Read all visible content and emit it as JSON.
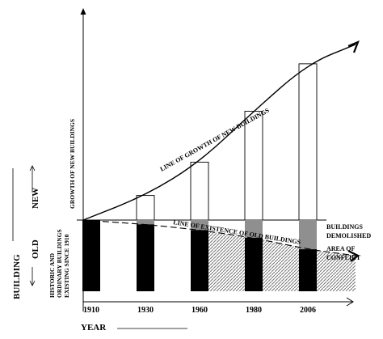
{
  "chart_data": {
    "type": "bar",
    "title": "",
    "categories": [
      "1910",
      "1930",
      "1960",
      "1980",
      "2006"
    ],
    "xlabel": "YEAR",
    "side_labels": {
      "building": "BUILDING",
      "new": "NEW",
      "old": "OLD",
      "new_axis": "GROWTH OF NEW BUILDINGS",
      "old_axis_line1": "HISTORIC AND",
      "old_axis_line2": "ORDINARY BUILDINGS",
      "old_axis_line3": "EXISTING SINCE 1910"
    },
    "annotations": {
      "growth_line": "LINE OF GROWTH OF NEW BUILDINGS",
      "existence_line": "LINE OF EXISTENCE OF OLD BUILDINGS",
      "demolished_line1": "BUILDINGS",
      "demolished_line2": "DEMOLISHED",
      "conflict_line1": "AREA OF",
      "conflict_line2": "CONFLICT"
    },
    "series": [
      {
        "name": "new",
        "values": [
          0,
          0.14,
          0.33,
          0.62,
          0.89
        ]
      },
      {
        "name": "old",
        "values": [
          1.0,
          0.94,
          0.86,
          0.75,
          0.59
        ]
      }
    ],
    "growth_curve": [
      0,
      0.14,
      0.33,
      0.62,
      0.89,
      1.0
    ],
    "existence_curve": [
      1.0,
      0.94,
      0.86,
      0.75,
      0.59,
      0.5
    ],
    "colors": {
      "ink": "#000000",
      "paper": "#ffffff",
      "hatch": "#777777",
      "demolished": "#8f8f8f"
    }
  }
}
